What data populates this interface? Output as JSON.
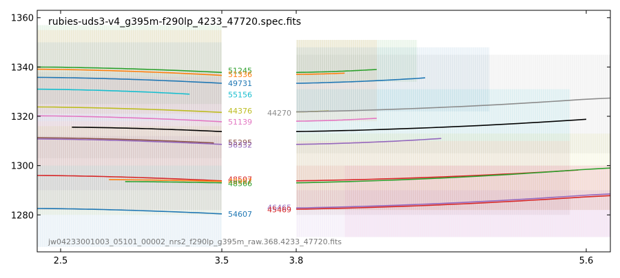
{
  "chart_data": {
    "type": "line",
    "title": "rubies-uds3-v4_g395m-f290lp_4233_47720.spec.fits",
    "footer_label": "jw04233001003_05101_00002_nrs2_f290lp_g395m_raw.368.4233_47720.fits",
    "xlabel": "",
    "ylabel": "",
    "x_ticks": [
      {
        "value": 2.5,
        "label": "2.5"
      },
      {
        "value": 3.5,
        "label": "3.5"
      },
      {
        "value": 3.8,
        "label": "3.8"
      },
      {
        "value": 5.6,
        "label": "5.6"
      }
    ],
    "y_ticks": [
      {
        "value": 1280,
        "label": "1280"
      },
      {
        "value": 1300,
        "label": "1300"
      },
      {
        "value": 1320,
        "label": "1320"
      },
      {
        "value": 1340,
        "label": "1340"
      },
      {
        "value": 1360,
        "label": "1360"
      }
    ],
    "ylim": [
      1265,
      1363
    ],
    "segments": [
      {
        "x": [
          2.4,
          2.6,
          2.8,
          3.0,
          3.2,
          3.4,
          3.5
        ]
      },
      {
        "x": [
          3.8,
          4.0,
          4.2,
          4.4,
          4.6,
          4.8,
          5.0,
          5.2,
          5.4,
          5.6,
          5.7
        ]
      }
    ],
    "series": [
      {
        "name": "51245",
        "color": "#2ca02c",
        "left": {
          "x": [
            2.4,
            3.5
          ],
          "y": [
            1340,
            1337.8
          ]
        },
        "right": {
          "x": [
            3.8,
            4.3
          ],
          "y": [
            1337.8,
            1339.0
          ]
        },
        "label_y": 1338.6
      },
      {
        "name": "51336",
        "color": "#ff7f0e",
        "left": {
          "x": [
            2.4,
            3.5
          ],
          "y": [
            1339.1,
            1336.6
          ]
        },
        "right": {
          "x": [
            3.8,
            4.1
          ],
          "y": [
            1337.0,
            1337.5
          ]
        },
        "label_y": 1337.0
      },
      {
        "name": "49731",
        "color": "#1f77b4",
        "left": {
          "x": [
            2.4,
            3.5
          ],
          "y": [
            1335.8,
            1333.4
          ]
        },
        "right": {
          "x": [
            3.8,
            4.6
          ],
          "y": [
            1333.4,
            1335.6
          ]
        },
        "label_y": 1333.4
      },
      {
        "name": "55156",
        "color": "#17becf",
        "left": {
          "x": [
            2.4,
            3.3
          ],
          "y": [
            1331.0,
            1329.0
          ]
        },
        "right": null,
        "label_y": 1328.8
      },
      {
        "name": "44376",
        "color": "#bcbd22",
        "left": {
          "x": [
            2.4,
            3.5
          ],
          "y": [
            1323.8,
            1321.6
          ]
        },
        "right": {
          "x": [
            3.8,
            4.0
          ],
          "y": [
            1321.8,
            1322.2
          ]
        },
        "label_y": 1322.2
      },
      {
        "name": "44270",
        "color": "#8c8c8c",
        "left": null,
        "right": {
          "x": [
            3.8,
            5.7
          ],
          "y": [
            1321.8,
            1327.4
          ]
        },
        "label_y": 1321.4
      },
      {
        "name": "51139",
        "color": "#e377c2",
        "left": {
          "x": [
            2.4,
            3.5
          ],
          "y": [
            1320.2,
            1317.8
          ]
        },
        "right": {
          "x": [
            3.8,
            4.3
          ],
          "y": [
            1318.0,
            1319.2
          ]
        },
        "label_y": 1317.8
      },
      {
        "name": "47720",
        "color": "#000000",
        "left": {
          "x": [
            2.57,
            3.5
          ],
          "y": [
            1315.6,
            1313.8
          ]
        },
        "right": {
          "x": [
            3.8,
            5.6
          ],
          "y": [
            1313.8,
            1318.8
          ]
        },
        "label_y": null
      },
      {
        "name": "55295",
        "color": "#8c564b",
        "left": {
          "x": [
            2.4,
            3.45
          ],
          "y": [
            1311.3,
            1309.2
          ]
        },
        "right": null,
        "label_y": 1309.4
      },
      {
        "name": "56332",
        "color": "#9467bd",
        "left": {
          "x": [
            2.4,
            3.5
          ],
          "y": [
            1310.8,
            1308.6
          ]
        },
        "right": {
          "x": [
            3.8,
            4.7
          ],
          "y": [
            1308.6,
            1311.0
          ]
        },
        "label_y": 1308.4
      },
      {
        "name": "48507",
        "color": "#d62728",
        "left": {
          "x": [
            2.4,
            3.5
          ],
          "y": [
            1296.0,
            1293.8
          ]
        },
        "right": {
          "x": [
            3.8,
            5.55
          ],
          "y": [
            1293.8,
            1298.2
          ]
        },
        "label_y": 1294.4
      },
      {
        "name": "48967",
        "color": "#ff7f0e",
        "left": {
          "x": [
            2.8,
            3.5
          ],
          "y": [
            1294.3,
            1293.6
          ]
        },
        "right": null,
        "label_y": 1293.6
      },
      {
        "name": "48566",
        "color": "#2ca02c",
        "left": {
          "x": [
            2.9,
            3.5
          ],
          "y": [
            1293.5,
            1293.0
          ]
        },
        "right": {
          "x": [
            3.8,
            5.7
          ],
          "y": [
            1293.0,
            1299.0
          ]
        },
        "label_y": 1292.8
      },
      {
        "name": "46465",
        "color": "#9467bd",
        "left": null,
        "right": {
          "x": [
            3.8,
            5.7
          ],
          "y": [
            1282.8,
            1288.5
          ]
        },
        "label_y": 1283.0
      },
      {
        "name": "45469",
        "color": "#d62728",
        "left": null,
        "right": {
          "x": [
            3.8,
            5.7
          ],
          "y": [
            1282.3,
            1287.8
          ]
        },
        "label_y": 1282.2
      },
      {
        "name": "54607",
        "color": "#1f77b4",
        "left": {
          "x": [
            2.4,
            3.5
          ],
          "y": [
            1282.6,
            1280.4
          ]
        },
        "right": null,
        "label_y": 1280.4
      }
    ],
    "bands": [
      {
        "color": "#2ca02c",
        "x": [
          2.4,
          3.5
        ],
        "y": [
          1325,
          1357
        ]
      },
      {
        "color": "#ff7f0e",
        "x": [
          2.4,
          3.5
        ],
        "y": [
          1321,
          1355
        ]
      },
      {
        "color": "#1f77b4",
        "x": [
          2.4,
          3.5
        ],
        "y": [
          1318,
          1350
        ]
      },
      {
        "color": "#8c8c8c",
        "x": [
          2.4,
          3.5
        ],
        "y": [
          1303,
          1338
        ]
      },
      {
        "color": "#e377c2",
        "x": [
          2.4,
          3.5
        ],
        "y": [
          1300,
          1336
        ]
      },
      {
        "color": "#8c564b",
        "x": [
          2.4,
          3.5
        ],
        "y": [
          1282,
          1318
        ]
      },
      {
        "color": "#9467bd",
        "x": [
          2.4,
          3.5
        ],
        "y": [
          1290,
          1312
        ]
      },
      {
        "color": "#bcbd22",
        "x": [
          2.4,
          3.5
        ],
        "y": [
          1280,
          1316
        ]
      },
      {
        "color": "#1f77b4",
        "x": [
          2.4,
          3.5
        ],
        "y": [
          1267,
          1300
        ]
      },
      {
        "color": "#2ca02c",
        "x": [
          3.8,
          4.55
        ],
        "y": [
          1334,
          1351
        ]
      },
      {
        "color": "#ff7f0e",
        "x": [
          3.8,
          4.3
        ],
        "y": [
          1318,
          1351
        ]
      },
      {
        "color": "#1f77b4",
        "x": [
          3.8,
          5.0
        ],
        "y": [
          1322,
          1348
        ]
      },
      {
        "color": "#8c8c8c",
        "x": [
          3.8,
          5.7
        ],
        "y": [
          1305,
          1345
        ]
      },
      {
        "color": "#17becf",
        "x": [
          3.8,
          5.5
        ],
        "y": [
          1310,
          1331
        ]
      },
      {
        "color": "#bcbd22",
        "x": [
          3.8,
          5.7
        ],
        "y": [
          1282,
          1313
        ]
      },
      {
        "color": "#8c564b",
        "x": [
          3.8,
          5.5
        ],
        "y": [
          1280,
          1310
        ]
      },
      {
        "color": "#d62728",
        "x": [
          3.8,
          5.7
        ],
        "y": [
          1282,
          1300
        ]
      },
      {
        "color": "#e377c2",
        "x": [
          4.1,
          5.7
        ],
        "y": [
          1271,
          1300
        ]
      },
      {
        "color": "#9467bd",
        "x": [
          3.8,
          5.7
        ],
        "y": [
          1271,
          1290
        ]
      }
    ]
  }
}
